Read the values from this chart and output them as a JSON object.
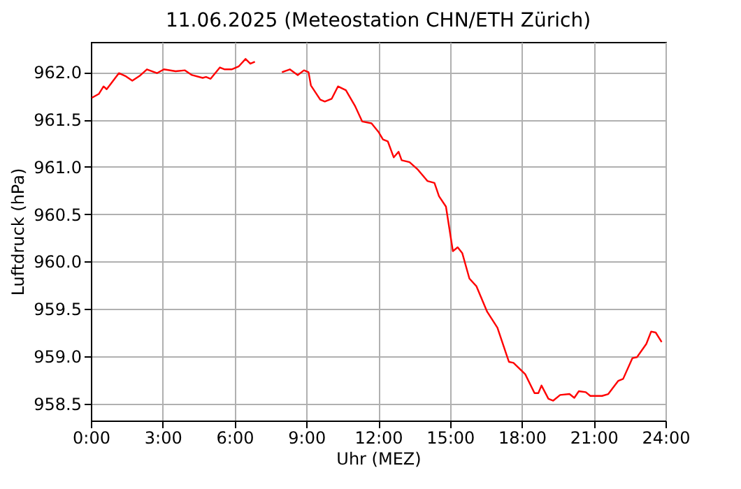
{
  "chart_data": {
    "type": "line",
    "title": "11.06.2025  (Meteostation CHN/ETH Zürich)",
    "xlabel": "Uhr (MEZ)",
    "ylabel": "Luftdruck (hPa)",
    "x": [
      0.04,
      0.33,
      0.53,
      0.66,
      1.17,
      1.44,
      1.73,
      2.03,
      2.34,
      2.76,
      3.05,
      3.54,
      3.93,
      4.22,
      4.67,
      4.81,
      5.0,
      5.39,
      5.59,
      5.88,
      6.17,
      6.46,
      6.66,
      6.85,
      7.4,
      7.98,
      8.31,
      8.64,
      8.9,
      9.09,
      9.19,
      9.58,
      9.77,
      10.06,
      10.32,
      10.65,
      11.04,
      11.33,
      11.72,
      12.01,
      12.2,
      12.4,
      12.65,
      12.85,
      12.98,
      13.31,
      13.66,
      14.06,
      14.35,
      14.54,
      14.83,
      15.12,
      15.32,
      15.51,
      15.81,
      16.1,
      16.55,
      16.98,
      17.46,
      17.65,
      18.14,
      18.53,
      18.69,
      18.82,
      19.11,
      19.31,
      19.6,
      19.99,
      20.19,
      20.38,
      20.67,
      20.86,
      21.35,
      21.61,
      22.03,
      22.23,
      22.62,
      22.81,
      23.2,
      23.4,
      23.59,
      23.84
    ],
    "series": [
      {
        "color": "#ff0000",
        "values": [
          961.73,
          961.77,
          961.85,
          961.82,
          961.99,
          961.96,
          961.91,
          961.96,
          962.03,
          961.99,
          962.03,
          962.01,
          962.02,
          961.97,
          961.94,
          961.95,
          961.93,
          962.05,
          962.03,
          962.03,
          962.06,
          962.14,
          962.09,
          962.11,
          null,
          962.0,
          962.03,
          961.97,
          962.02,
          962.0,
          961.86,
          961.71,
          961.69,
          961.72,
          961.85,
          961.81,
          961.64,
          961.48,
          961.46,
          961.37,
          961.29,
          961.27,
          961.1,
          961.16,
          961.07,
          961.05,
          960.97,
          960.85,
          960.83,
          960.69,
          960.58,
          960.11,
          960.15,
          960.09,
          959.82,
          959.74,
          959.47,
          959.3,
          958.94,
          958.93,
          958.81,
          958.61,
          958.61,
          958.69,
          958.55,
          958.53,
          958.59,
          958.6,
          958.56,
          958.63,
          958.62,
          958.58,
          958.58,
          958.6,
          958.74,
          958.76,
          958.98,
          958.99,
          959.13,
          959.26,
          959.25,
          959.15
        ]
      }
    ],
    "xlim": [
      0,
      24
    ],
    "xticks": [
      {
        "value": 0,
        "label": "0:00"
      },
      {
        "value": 3,
        "label": "3:00"
      },
      {
        "value": 6,
        "label": "6:00"
      },
      {
        "value": 9,
        "label": "9:00"
      },
      {
        "value": 12,
        "label": "12:00"
      },
      {
        "value": 15,
        "label": "15:00"
      },
      {
        "value": 18,
        "label": "18:00"
      },
      {
        "value": 21,
        "label": "21:00"
      },
      {
        "value": 24,
        "label": "24:00"
      }
    ],
    "ylim": [
      958.32,
      962.32
    ],
    "yticks": [
      {
        "value": 958.5,
        "label": "958.5"
      },
      {
        "value": 959,
        "label": "959.0"
      },
      {
        "value": 959.5,
        "label": "959.5"
      },
      {
        "value": 960,
        "label": "960.0"
      },
      {
        "value": 960.5,
        "label": "960.5"
      },
      {
        "value": 961,
        "label": "961.0"
      },
      {
        "value": 961.5,
        "label": "961.5"
      },
      {
        "value": 962,
        "label": "962.0"
      }
    ],
    "grid": true,
    "line_style": "solid"
  }
}
